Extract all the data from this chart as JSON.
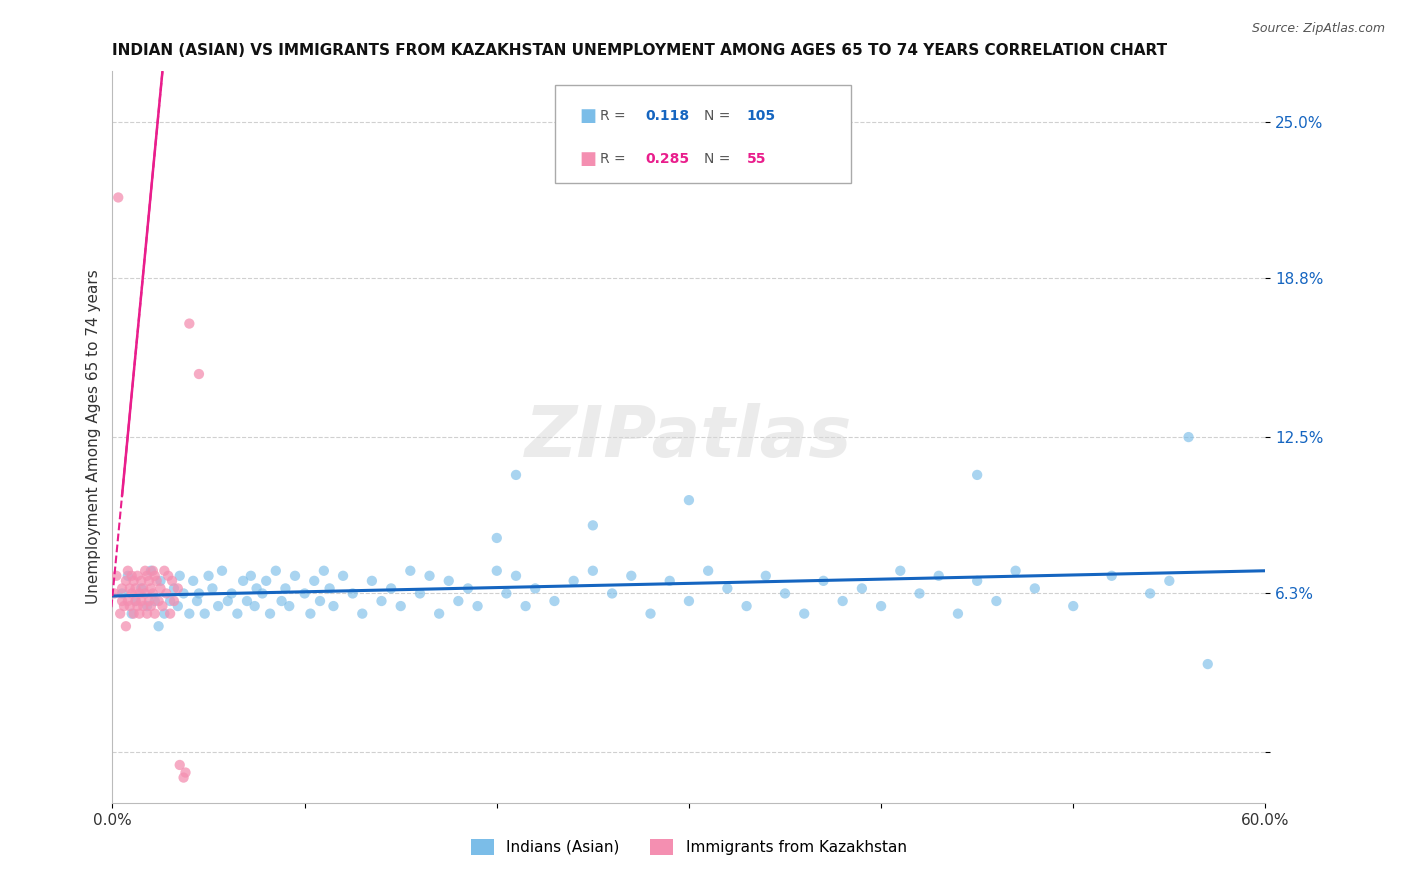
{
  "title": "INDIAN (ASIAN) VS IMMIGRANTS FROM KAZAKHSTAN UNEMPLOYMENT AMONG AGES 65 TO 74 YEARS CORRELATION CHART",
  "source": "Source: ZipAtlas.com",
  "ylabel": "Unemployment Among Ages 65 to 74 years",
  "xlim": [
    0.0,
    0.6
  ],
  "ylim": [
    -0.02,
    0.27
  ],
  "yplot_min": -0.02,
  "yplot_max": 0.27,
  "ytick_values": [
    0.0,
    0.063,
    0.125,
    0.188,
    0.25
  ],
  "ytick_labels": [
    "",
    "6.3%",
    "12.5%",
    "18.8%",
    "25.0%"
  ],
  "xtick_values": [
    0.0,
    0.1,
    0.2,
    0.3,
    0.4,
    0.5,
    0.6
  ],
  "xtick_labels": [
    "0.0%",
    "",
    "",
    "",
    "",
    "",
    "60.0%"
  ],
  "r_blue": 0.118,
  "n_blue": 105,
  "r_pink": 0.285,
  "n_pink": 55,
  "blue_color": "#7bbde8",
  "pink_color": "#f48fb1",
  "trend_blue_color": "#1565c0",
  "trend_pink_color": "#e91e8c",
  "legend_label_blue": "Indians (Asian)",
  "legend_label_pink": "Immigrants from Kazakhstan",
  "watermark_text": "ZIPatlas",
  "blue_scatter_x": [
    0.005,
    0.008,
    0.01,
    0.012,
    0.015,
    0.018,
    0.02,
    0.022,
    0.024,
    0.025,
    0.027,
    0.03,
    0.032,
    0.034,
    0.035,
    0.037,
    0.04,
    0.042,
    0.044,
    0.045,
    0.048,
    0.05,
    0.052,
    0.055,
    0.057,
    0.06,
    0.062,
    0.065,
    0.068,
    0.07,
    0.072,
    0.074,
    0.075,
    0.078,
    0.08,
    0.082,
    0.085,
    0.088,
    0.09,
    0.092,
    0.095,
    0.1,
    0.103,
    0.105,
    0.108,
    0.11,
    0.113,
    0.115,
    0.12,
    0.125,
    0.13,
    0.135,
    0.14,
    0.145,
    0.15,
    0.155,
    0.16,
    0.165,
    0.17,
    0.175,
    0.18,
    0.185,
    0.19,
    0.2,
    0.205,
    0.21,
    0.215,
    0.22,
    0.23,
    0.24,
    0.25,
    0.26,
    0.27,
    0.28,
    0.29,
    0.3,
    0.31,
    0.32,
    0.33,
    0.34,
    0.35,
    0.36,
    0.37,
    0.38,
    0.39,
    0.4,
    0.41,
    0.42,
    0.43,
    0.44,
    0.45,
    0.46,
    0.47,
    0.48,
    0.5,
    0.52,
    0.54,
    0.55,
    0.56,
    0.21,
    0.3,
    0.2,
    0.25,
    0.45,
    0.57
  ],
  "blue_scatter_y": [
    0.063,
    0.07,
    0.055,
    0.06,
    0.065,
    0.058,
    0.072,
    0.06,
    0.05,
    0.068,
    0.055,
    0.06,
    0.065,
    0.058,
    0.07,
    0.063,
    0.055,
    0.068,
    0.06,
    0.063,
    0.055,
    0.07,
    0.065,
    0.058,
    0.072,
    0.06,
    0.063,
    0.055,
    0.068,
    0.06,
    0.07,
    0.058,
    0.065,
    0.063,
    0.068,
    0.055,
    0.072,
    0.06,
    0.065,
    0.058,
    0.07,
    0.063,
    0.055,
    0.068,
    0.06,
    0.072,
    0.065,
    0.058,
    0.07,
    0.063,
    0.055,
    0.068,
    0.06,
    0.065,
    0.058,
    0.072,
    0.063,
    0.07,
    0.055,
    0.068,
    0.06,
    0.065,
    0.058,
    0.072,
    0.063,
    0.07,
    0.058,
    0.065,
    0.06,
    0.068,
    0.072,
    0.063,
    0.07,
    0.055,
    0.068,
    0.06,
    0.072,
    0.065,
    0.058,
    0.07,
    0.063,
    0.055,
    0.068,
    0.06,
    0.065,
    0.058,
    0.072,
    0.063,
    0.07,
    0.055,
    0.068,
    0.06,
    0.072,
    0.065,
    0.058,
    0.07,
    0.063,
    0.068,
    0.125,
    0.11,
    0.1,
    0.085,
    0.09,
    0.11,
    0.035
  ],
  "pink_scatter_x": [
    0.001,
    0.002,
    0.003,
    0.004,
    0.005,
    0.005,
    0.006,
    0.007,
    0.007,
    0.008,
    0.008,
    0.009,
    0.009,
    0.01,
    0.01,
    0.011,
    0.011,
    0.012,
    0.012,
    0.013,
    0.013,
    0.014,
    0.014,
    0.015,
    0.015,
    0.016,
    0.016,
    0.017,
    0.017,
    0.018,
    0.018,
    0.019,
    0.019,
    0.02,
    0.02,
    0.021,
    0.021,
    0.022,
    0.022,
    0.023,
    0.024,
    0.025,
    0.026,
    0.027,
    0.028,
    0.029,
    0.03,
    0.031,
    0.032,
    0.034,
    0.035,
    0.037,
    0.038,
    0.04,
    0.045
  ],
  "pink_scatter_y": [
    0.063,
    0.07,
    0.22,
    0.055,
    0.06,
    0.065,
    0.058,
    0.068,
    0.05,
    0.072,
    0.06,
    0.065,
    0.058,
    0.07,
    0.063,
    0.055,
    0.068,
    0.06,
    0.065,
    0.058,
    0.07,
    0.063,
    0.055,
    0.068,
    0.06,
    0.065,
    0.058,
    0.072,
    0.063,
    0.07,
    0.055,
    0.068,
    0.06,
    0.065,
    0.058,
    0.072,
    0.063,
    0.07,
    0.055,
    0.068,
    0.06,
    0.065,
    0.058,
    0.072,
    0.063,
    0.07,
    0.055,
    0.068,
    0.06,
    0.065,
    -0.005,
    -0.01,
    -0.008,
    0.17,
    0.15
  ]
}
